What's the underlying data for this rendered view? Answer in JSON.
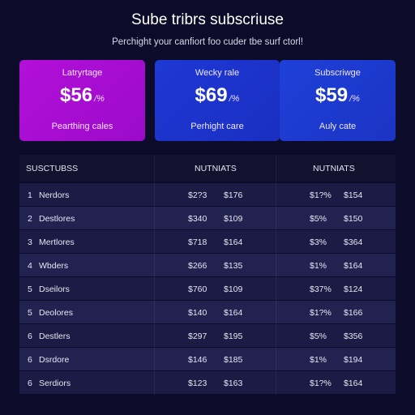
{
  "header": {
    "title": "Sube tribrs subscriuse",
    "subtitle": "Perchight your canfiort foo cuder tbe surf ctorl!"
  },
  "cards": [
    {
      "label": "Latryrtage",
      "price": "$56",
      "period": "/%",
      "foot": "Pearthing cales",
      "color": "#b30fd8"
    },
    {
      "label": "Wecky rale",
      "price": "$69",
      "period": "/%",
      "foot": "Perhight care",
      "color": "#1e38d4"
    },
    {
      "label": "Subscriwge",
      "price": "$59",
      "period": "/%",
      "foot": "Auly cate",
      "color": "#1e40d8"
    }
  ],
  "table": {
    "headers": [
      "SUSCTUBSS",
      "NUTNIATS",
      "NUTNIATS"
    ],
    "rows": [
      {
        "num": "1",
        "name": "Nerdors",
        "a": "$2?3",
        "b": "$176",
        "c": "$1?%",
        "d": "$154"
      },
      {
        "num": "2",
        "name": "Destlores",
        "a": "$340",
        "b": "$109",
        "c": "$5%",
        "d": "$150"
      },
      {
        "num": "3",
        "name": "Mertlores",
        "a": "$718",
        "b": "$164",
        "c": "$3%",
        "d": "$364"
      },
      {
        "num": "4",
        "name": "Wbders",
        "a": "$266",
        "b": "$135",
        "c": "$1%",
        "d": "$164"
      },
      {
        "num": "5",
        "name": "Dseilors",
        "a": "$760",
        "b": "$109",
        "c": "$37%",
        "d": "$124"
      },
      {
        "num": "5",
        "name": "Deolores",
        "a": "$140",
        "b": "$164",
        "c": "$1?%",
        "d": "$166"
      },
      {
        "num": "6",
        "name": "Destlers",
        "a": "$297",
        "b": "$195",
        "c": "$5%",
        "d": "$356"
      },
      {
        "num": "6",
        "name": "Dsrdore",
        "a": "$146",
        "b": "$185",
        "c": "$1%",
        "d": "$194"
      },
      {
        "num": "6",
        "name": "Serdiors",
        "a": "$123",
        "b": "$163",
        "c": "$1?%",
        "d": "$164"
      }
    ]
  }
}
